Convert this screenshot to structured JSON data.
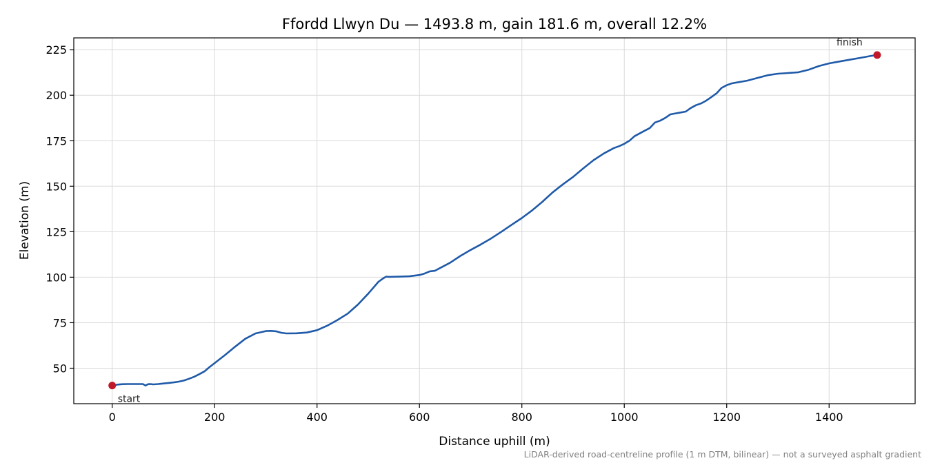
{
  "chart_data": {
    "type": "line",
    "title": "Ffordd Llwyn Du — 1493.8 m, gain 181.6 m, overall 12.2%",
    "xlabel": "Distance uphill (m)",
    "ylabel": "Elevation (m)",
    "xlim": [
      -75,
      1568
    ],
    "ylim": [
      30.5,
      231.5
    ],
    "xticks": [
      0,
      200,
      400,
      600,
      800,
      1000,
      1200,
      1400
    ],
    "yticks": [
      50,
      75,
      100,
      125,
      150,
      175,
      200,
      225
    ],
    "grid": true,
    "line_color": "#1f5aa8",
    "marker_color": "#c0192a",
    "series": [
      {
        "x": [
          0,
          10,
          20,
          30,
          40,
          50,
          60,
          65,
          70,
          75,
          80,
          90,
          100,
          110,
          120,
          130,
          140,
          150,
          160,
          170,
          180,
          190,
          200,
          220,
          240,
          260,
          280,
          300,
          310,
          320,
          330,
          340,
          360,
          380,
          400,
          420,
          440,
          460,
          480,
          500,
          520,
          530,
          535,
          540,
          560,
          580,
          600,
          610,
          620,
          630,
          640,
          660,
          680,
          700,
          720,
          740,
          760,
          780,
          800,
          820,
          840,
          860,
          880,
          900,
          920,
          940,
          960,
          980,
          990,
          1000,
          1010,
          1020,
          1030,
          1040,
          1050,
          1060,
          1070,
          1080,
          1090,
          1100,
          1110,
          1120,
          1130,
          1140,
          1150,
          1160,
          1170,
          1180,
          1190,
          1200,
          1210,
          1220,
          1240,
          1260,
          1280,
          1300,
          1320,
          1340,
          1360,
          1380,
          1400,
          1420,
          1440,
          1460,
          1480,
          1493.8
        ],
        "y": [
          40.5,
          41,
          41.2,
          41.3,
          41.3,
          41.3,
          41.3,
          40.5,
          41.2,
          41.3,
          41.1,
          41.3,
          41.6,
          41.9,
          42.2,
          42.6,
          43.2,
          44.2,
          45.3,
          46.7,
          48.2,
          50.6,
          52.8,
          57.2,
          61.8,
          66.2,
          69.1,
          70.4,
          70.5,
          70.3,
          69.5,
          69.1,
          69.2,
          69.6,
          70.9,
          73.4,
          76.5,
          80.0,
          85.0,
          91.0,
          97.5,
          99.5,
          100.3,
          100.2,
          100.3,
          100.5,
          101.2,
          102.0,
          103.2,
          103.5,
          105.0,
          108.0,
          111.7,
          115.0,
          118.0,
          121.3,
          125.0,
          128.8,
          132.5,
          136.7,
          141.4,
          146.6,
          151.0,
          155.1,
          159.8,
          164.3,
          168.0,
          171.0,
          172.0,
          173.3,
          175.0,
          177.5,
          179.0,
          180.5,
          182.0,
          185.0,
          186.0,
          187.5,
          189.5,
          190.0,
          190.5,
          191.0,
          193.0,
          194.5,
          195.5,
          197.0,
          199.0,
          201.0,
          204.0,
          205.5,
          206.5,
          207.0,
          208.0,
          209.5,
          211.0,
          211.8,
          212.2,
          212.6,
          214.0,
          216.0,
          217.5,
          218.5,
          219.5,
          220.5,
          221.5,
          222.1
        ]
      }
    ],
    "markers": [
      {
        "label": "start",
        "x": 0,
        "y": 40.5
      },
      {
        "label": "finish",
        "x": 1493.8,
        "y": 222.1
      }
    ],
    "footnote": "LiDAR-derived road-centreline profile (1 m DTM, bilinear) — not a surveyed asphalt gradient"
  }
}
